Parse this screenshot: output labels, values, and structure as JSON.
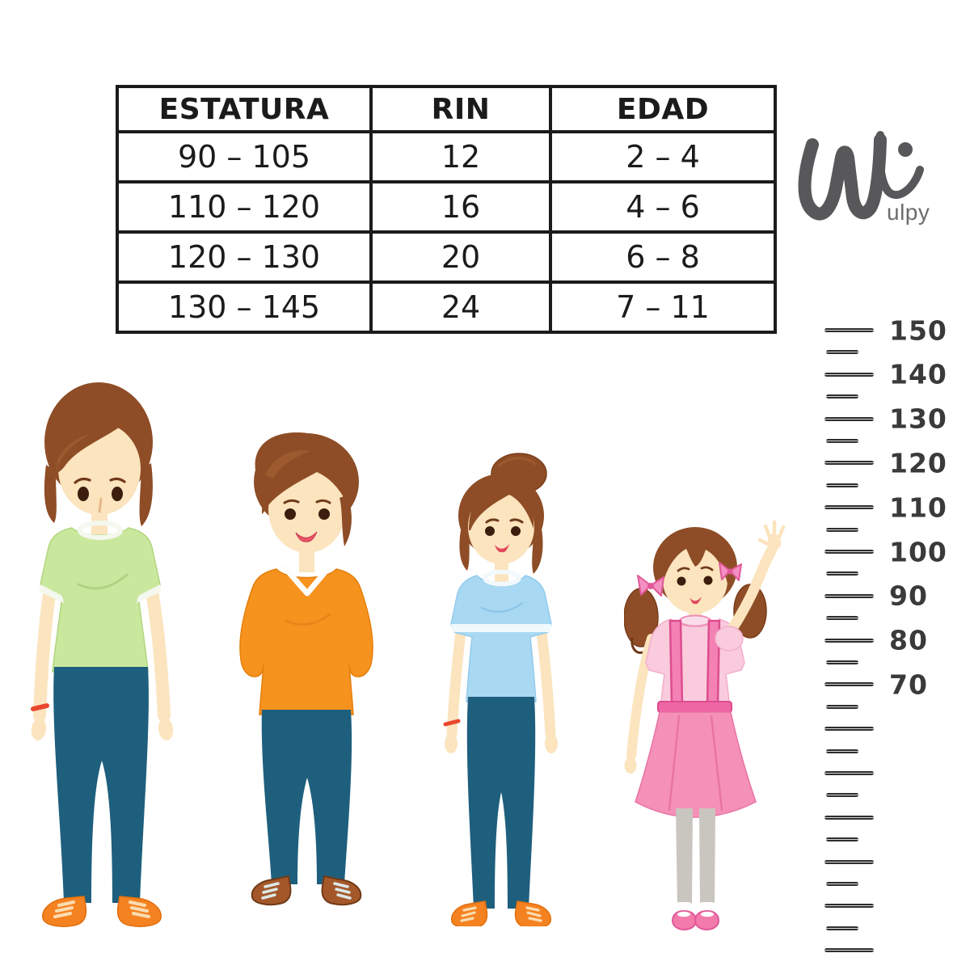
{
  "page": {
    "background": "#ffffff"
  },
  "size_table": {
    "headers": [
      "ESTATURA",
      "RIN",
      "EDAD"
    ],
    "rows": [
      [
        "90 – 105",
        "12",
        "2 – 4"
      ],
      [
        "110 – 120",
        "16",
        "4 – 6"
      ],
      [
        "120 – 130",
        "20",
        "6 – 8"
      ],
      [
        "130 – 145",
        "24",
        "7 – 11"
      ]
    ]
  },
  "logo": {
    "brand": "Wulpy",
    "wordmark_suffix": "ulpy",
    "color": "#58585b"
  },
  "ruler": {
    "labels": [
      "150",
      "140",
      "130",
      "120",
      "110",
      "100",
      "90",
      "80",
      "70"
    ],
    "long_ticks_total": 15,
    "short_ticks_between": 14,
    "tick_color": "#2e2e2e",
    "label_color": "#3a3a3a"
  },
  "characters": [
    {
      "name": "teen-green-shirt",
      "hair_color": "#8e4d26",
      "shirt_color": "#c9e89e",
      "pants_color": "#1e5f7d",
      "shoe_color": "#f58220",
      "accessory": "red-bracelet"
    },
    {
      "name": "boy-orange-sweater",
      "hair_color": "#8e4d26",
      "shirt_color": "#f6921e",
      "pants_color": "#1e5f7d",
      "shoe_color": "#a4582a"
    },
    {
      "name": "girl-blue-shirt",
      "hair_color": "#8e4d26",
      "shirt_color": "#a9d9f2",
      "pants_color": "#1e5f7d",
      "shoe_color": "#f58220",
      "accessory": "red-bracelet"
    },
    {
      "name": "little-girl-pink-dress",
      "hair_color": "#8e4d26",
      "top_color": "#f9cbdd",
      "skirt_color": "#f590b8",
      "legging_color": "#c9c5bf",
      "shoe_color": "#f27bab",
      "accessory": "pink-hair-bows"
    }
  ],
  "chart_data": {
    "type": "table",
    "title": "",
    "columns": [
      "ESTATURA",
      "RIN",
      "EDAD"
    ],
    "rows": [
      [
        "90 – 105",
        "12",
        "2 – 4"
      ],
      [
        "110 – 120",
        "16",
        "4 – 6"
      ],
      [
        "120 – 130",
        "20",
        "6 – 8"
      ],
      [
        "130 – 145",
        "24",
        "7 – 11"
      ]
    ],
    "ruler_scale": {
      "labeled_max": 150,
      "labeled_min": 70,
      "step": 10,
      "labels": [
        150,
        140,
        130,
        120,
        110,
        100,
        90,
        80,
        70
      ],
      "unlabeled_long_ticks_below": 6
    }
  }
}
